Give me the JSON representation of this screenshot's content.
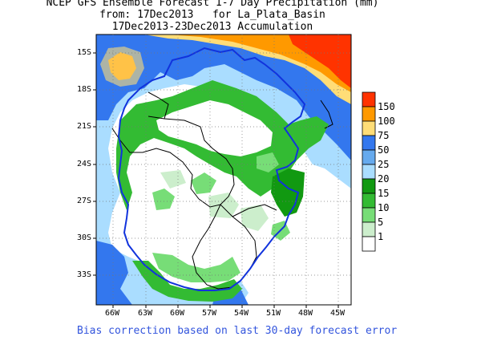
{
  "title": {
    "line1": "NCEP GFS Ensemble Forecast 1-7 Day Precipitation (mm)",
    "line2": "from: 17Dec2013   for La_Plata_Basin",
    "line3": "17Dec2013-23Dec2013 Accumulation"
  },
  "axes": {
    "lat_labels": [
      "15S",
      "18S",
      "21S",
      "24S",
      "27S",
      "30S",
      "33S"
    ],
    "lon_labels": [
      "66W",
      "63W",
      "60W",
      "57W",
      "54W",
      "51W",
      "48W",
      "45W"
    ]
  },
  "legend": {
    "levels": [
      "150",
      "100",
      "75",
      "50",
      "25",
      "20",
      "15",
      "10",
      "5",
      "1"
    ],
    "colors": [
      "#ff3300",
      "#ff9900",
      "#ffdd77",
      "#3377ee",
      "#66aaee",
      "#aaddff",
      "#119911",
      "#33bb33",
      "#77dd77",
      "#cceecc",
      "#ffffff"
    ]
  },
  "footnote": "Bias correction based on last 30-day forecast error",
  "map_colors": {
    "red": "#ff3300",
    "orange": "#ff9900",
    "yellow": "#ffdd77",
    "blue": "#3377ee",
    "midblue": "#66aaee",
    "lightblue": "#aaddff",
    "darkgreen": "#119911",
    "green": "#33bb33",
    "lightgreen": "#77dd77",
    "palegreen": "#cceecc",
    "basin": "#1133dd"
  }
}
